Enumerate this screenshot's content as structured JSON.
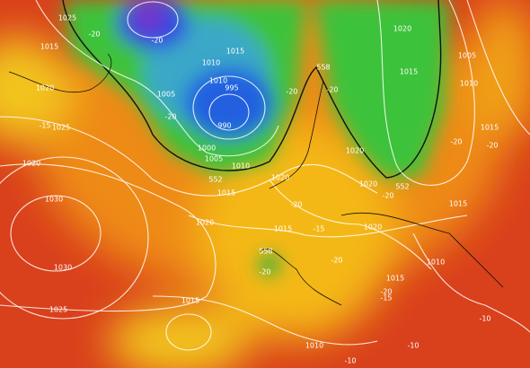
{
  "labels": [
    "1025",
    "1015",
    "1020",
    "1025",
    "1020",
    "1030",
    "1030",
    "1025",
    "1010",
    "1010",
    "1005",
    "1000",
    "1005",
    "1010",
    "990",
    "995",
    "1015",
    "1015",
    "1020",
    "1020",
    "1015",
    "1015",
    "1010",
    "1015",
    "1020",
    "1020",
    "1020",
    "1015",
    "1020",
    "1005",
    "1010",
    "1015",
    "1015",
    "1010",
    "552",
    "552",
    "558",
    "558",
    "-20",
    "-20",
    "-20",
    "-20",
    "-20",
    "-20",
    "-20",
    "-20",
    "-20",
    "-20",
    "-20",
    "-20",
    "-15",
    "-15",
    "-15",
    "-10",
    "-10",
    "-10"
  ]
}
